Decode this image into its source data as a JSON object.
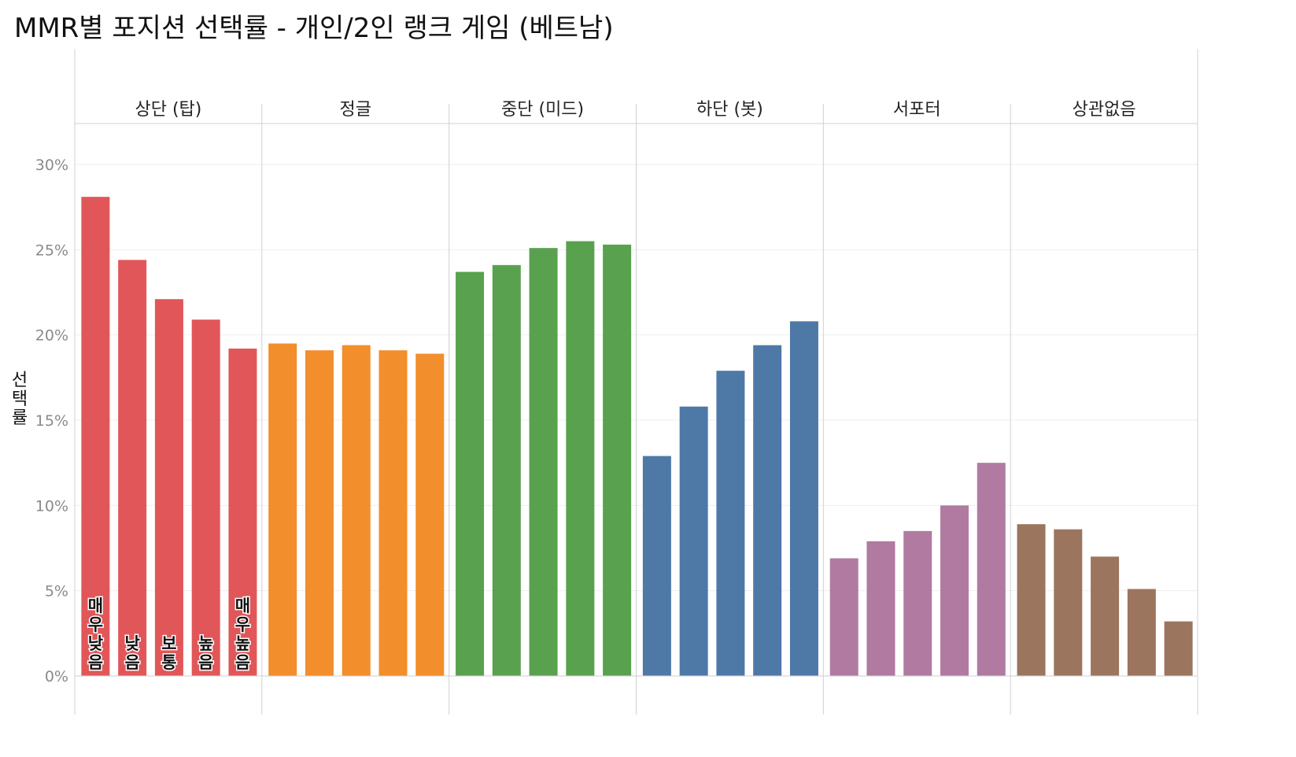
{
  "chart_data": {
    "type": "bar",
    "title": "MMR별 포지션 선택률 - 개인/2인 랭크 게임 (베트남)",
    "ylabel": "선택률",
    "ylim": [
      0,
      32
    ],
    "yticks": [
      0,
      5,
      10,
      15,
      20,
      25,
      30
    ],
    "ytick_labels": [
      "0%",
      "5%",
      "10%",
      "15%",
      "20%",
      "25%",
      "30%"
    ],
    "mmr_levels": [
      "매우 낮음",
      "낮음",
      "보통",
      "높음",
      "매우 높음"
    ],
    "groups": [
      {
        "name": "상단 (탑)",
        "color": "#e15759",
        "values": [
          28.1,
          24.4,
          22.1,
          20.9,
          19.2
        ]
      },
      {
        "name": "정글",
        "color": "#f28e2b",
        "values": [
          19.5,
          19.1,
          19.4,
          19.1,
          18.9
        ]
      },
      {
        "name": "중단 (미드)",
        "color": "#59a14f",
        "values": [
          23.7,
          24.1,
          25.1,
          25.5,
          25.3
        ]
      },
      {
        "name": "하단 (봇)",
        "color": "#4e79a7",
        "values": [
          12.9,
          15.8,
          17.9,
          19.4,
          20.8
        ]
      },
      {
        "name": "서포터",
        "color": "#b07aa1",
        "values": [
          6.9,
          7.9,
          8.5,
          10.0,
          12.5
        ]
      },
      {
        "name": "상관없음",
        "color": "#9c755f",
        "values": [
          8.9,
          8.6,
          7.0,
          5.1,
          3.2
        ]
      }
    ],
    "bar_labels_group": 0
  }
}
